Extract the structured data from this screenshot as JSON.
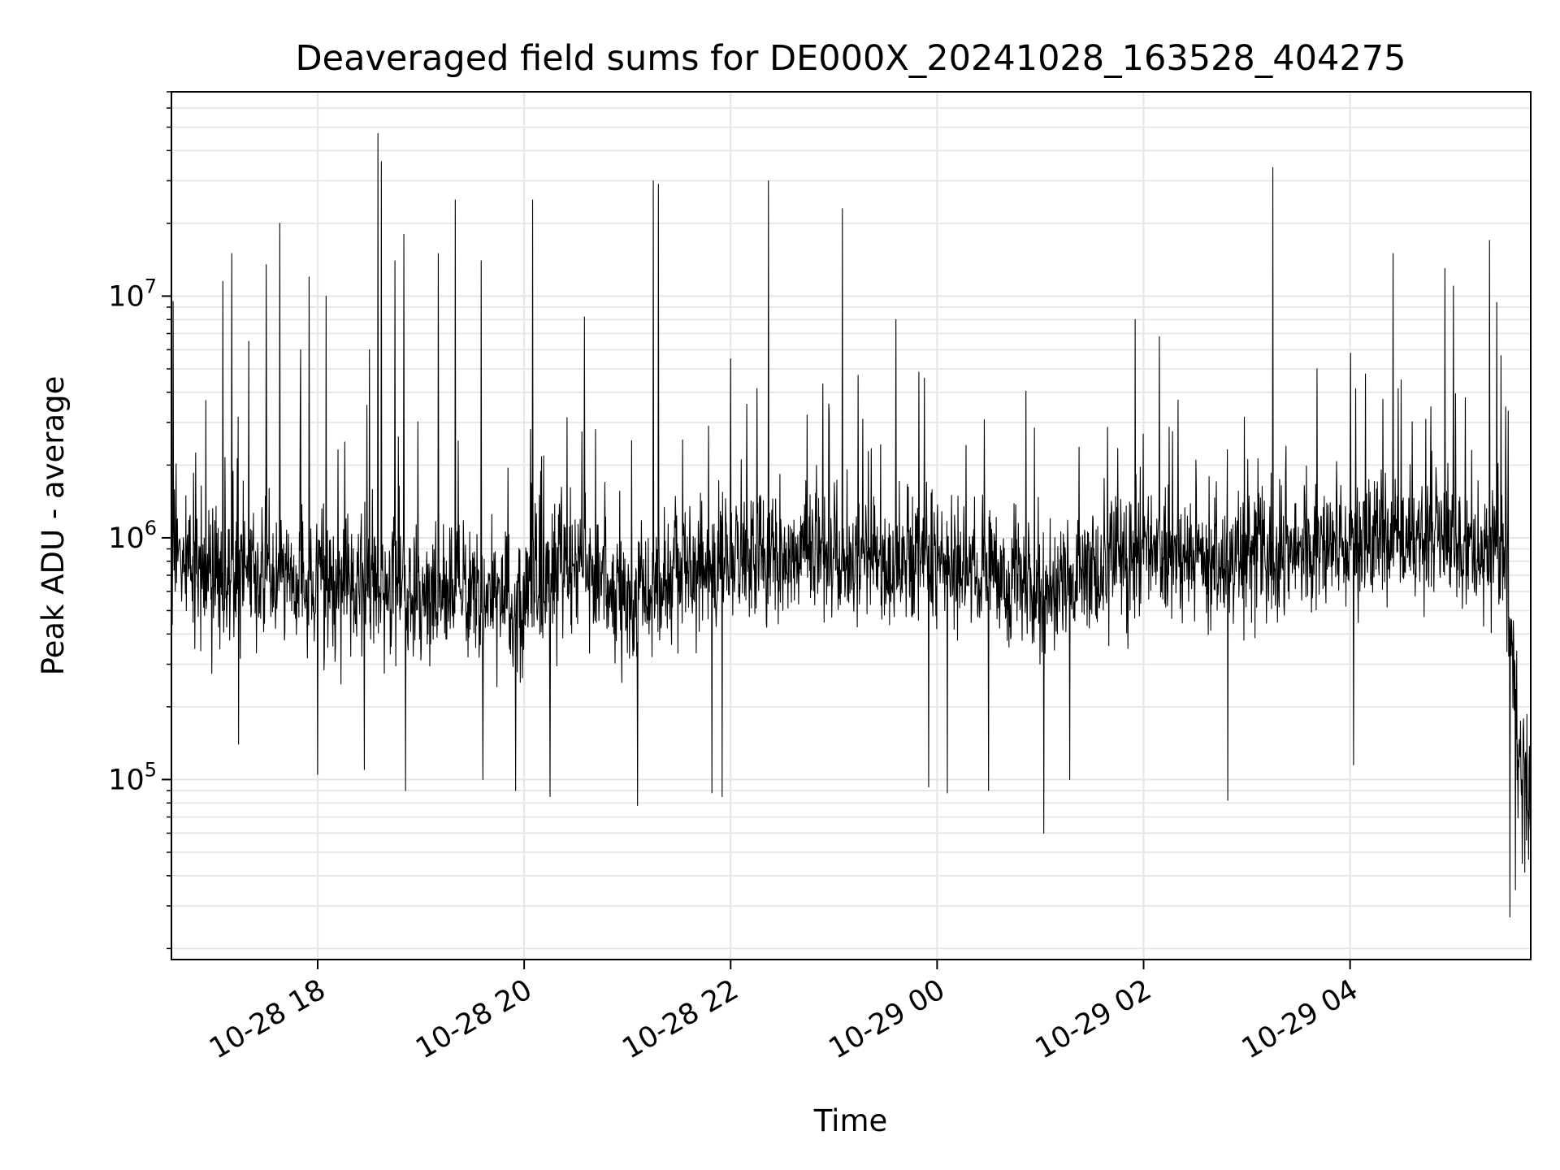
{
  "chart_data": {
    "type": "line",
    "title": "Deaveraged field sums for DE000X_20241028_163528_404275",
    "xlabel": "Time",
    "ylabel": "Peak ADU - average",
    "yscale": "log",
    "ylim": [
      18000,
      70000000
    ],
    "xlim": [
      "2024-10-28 16:35",
      "2024-10-29 05:45"
    ],
    "grid": true,
    "line_color": "#000000",
    "grid_color": "#e6e6e6",
    "x_ticks": [
      {
        "value": "2024-10-28 18:00",
        "label": "10-28 18"
      },
      {
        "value": "2024-10-28 20:00",
        "label": "10-28 20"
      },
      {
        "value": "2024-10-28 22:00",
        "label": "10-28 22"
      },
      {
        "value": "2024-10-29 00:00",
        "label": "10-29 00"
      },
      {
        "value": "2024-10-29 02:00",
        "label": "10-29 02"
      },
      {
        "value": "2024-10-29 04:00",
        "label": "10-29 04"
      }
    ],
    "y_ticks": [
      {
        "value": 100000,
        "base": "10",
        "exp": "5"
      },
      {
        "value": 1000000,
        "base": "10",
        "exp": "6"
      },
      {
        "value": 10000000,
        "base": "10",
        "exp": "7"
      }
    ],
    "baseline_trend": [
      {
        "x": "2024-10-28 16:35",
        "y": 900000
      },
      {
        "x": "2024-10-28 17:00",
        "y": 700000
      },
      {
        "x": "2024-10-28 18:00",
        "y": 650000
      },
      {
        "x": "2024-10-28 19:00",
        "y": 600000
      },
      {
        "x": "2024-10-28 20:00",
        "y": 550000
      },
      {
        "x": "2024-10-28 20:30",
        "y": 800000
      },
      {
        "x": "2024-10-28 21:00",
        "y": 550000
      },
      {
        "x": "2024-10-28 22:00",
        "y": 800000
      },
      {
        "x": "2024-10-28 23:00",
        "y": 850000
      },
      {
        "x": "2024-10-29 00:00",
        "y": 800000
      },
      {
        "x": "2024-10-29 01:00",
        "y": 600000
      },
      {
        "x": "2024-10-29 02:00",
        "y": 850000
      },
      {
        "x": "2024-10-29 03:00",
        "y": 800000
      },
      {
        "x": "2024-10-29 04:00",
        "y": 1000000
      },
      {
        "x": "2024-10-29 05:00",
        "y": 1000000
      },
      {
        "x": "2024-10-29 05:30",
        "y": 900000
      },
      {
        "x": "2024-10-29 05:36",
        "y": 200000
      },
      {
        "x": "2024-10-29 05:45",
        "y": 60000
      }
    ],
    "spikes": [
      {
        "x": "2024-10-28 16:36",
        "y": 9500000
      },
      {
        "x": "2024-10-28 16:55",
        "y": 3700000
      },
      {
        "x": "2024-10-28 17:05",
        "y": 11500000
      },
      {
        "x": "2024-10-28 17:10",
        "y": 15000000
      },
      {
        "x": "2024-10-28 17:20",
        "y": 6500000
      },
      {
        "x": "2024-10-28 17:30",
        "y": 13500000
      },
      {
        "x": "2024-10-28 17:38",
        "y": 20000000
      },
      {
        "x": "2024-10-28 17:50",
        "y": 6000000
      },
      {
        "x": "2024-10-28 17:55",
        "y": 12000000
      },
      {
        "x": "2024-10-28 18:05",
        "y": 10000000
      },
      {
        "x": "2024-10-28 18:30",
        "y": 6000000
      },
      {
        "x": "2024-10-28 18:35",
        "y": 47000000
      },
      {
        "x": "2024-10-28 18:37",
        "y": 36000000
      },
      {
        "x": "2024-10-28 18:45",
        "y": 14000000
      },
      {
        "x": "2024-10-28 18:50",
        "y": 18000000
      },
      {
        "x": "2024-10-28 19:10",
        "y": 15000000
      },
      {
        "x": "2024-10-28 19:20",
        "y": 25000000
      },
      {
        "x": "2024-10-28 19:35",
        "y": 14000000
      },
      {
        "x": "2024-10-28 20:05",
        "y": 25000000
      },
      {
        "x": "2024-10-28 20:35",
        "y": 8200000
      },
      {
        "x": "2024-10-28 21:15",
        "y": 30000000
      },
      {
        "x": "2024-10-28 21:18",
        "y": 29000000
      },
      {
        "x": "2024-10-28 22:00",
        "y": 5500000
      },
      {
        "x": "2024-10-28 22:22",
        "y": 30000000
      },
      {
        "x": "2024-10-28 23:05",
        "y": 23000000
      },
      {
        "x": "2024-10-28 23:36",
        "y": 8000000
      },
      {
        "x": "2024-10-29 01:55",
        "y": 8000000
      },
      {
        "x": "2024-10-29 03:15",
        "y": 34000000
      },
      {
        "x": "2024-10-29 04:25",
        "y": 15000000
      },
      {
        "x": "2024-10-29 04:55",
        "y": 13000000
      },
      {
        "x": "2024-10-29 05:00",
        "y": 11000000
      },
      {
        "x": "2024-10-29 05:07",
        "y": 3800000
      },
      {
        "x": "2024-10-29 05:21",
        "y": 17000000
      }
    ],
    "dips": [
      {
        "x": "2024-10-28 17:14",
        "y": 140000
      },
      {
        "x": "2024-10-28 18:00",
        "y": 105000
      },
      {
        "x": "2024-10-28 18:27",
        "y": 110000
      },
      {
        "x": "2024-10-28 18:51",
        "y": 90000
      },
      {
        "x": "2024-10-28 19:36",
        "y": 100000
      },
      {
        "x": "2024-10-28 19:55",
        "y": 90000
      },
      {
        "x": "2024-10-28 20:15",
        "y": 85000
      },
      {
        "x": "2024-10-28 21:06",
        "y": 78000
      },
      {
        "x": "2024-10-28 21:49",
        "y": 88000
      },
      {
        "x": "2024-10-28 21:55",
        "y": 85000
      },
      {
        "x": "2024-10-28 23:55",
        "y": 93000
      },
      {
        "x": "2024-10-29 00:06",
        "y": 88000
      },
      {
        "x": "2024-10-29 00:30",
        "y": 90000
      },
      {
        "x": "2024-10-29 01:02",
        "y": 60000
      },
      {
        "x": "2024-10-29 01:17",
        "y": 100000
      },
      {
        "x": "2024-10-29 02:49",
        "y": 82000
      },
      {
        "x": "2024-10-29 04:02",
        "y": 115000
      },
      {
        "x": "2024-10-29 05:33",
        "y": 27000
      },
      {
        "x": "2024-10-29 05:36",
        "y": 35000
      },
      {
        "x": "2024-10-29 05:40",
        "y": 45000
      }
    ]
  }
}
